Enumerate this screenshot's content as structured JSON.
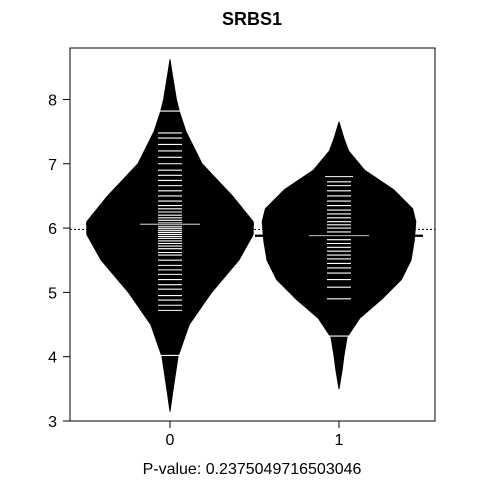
{
  "chart_data": {
    "type": "beanplot",
    "title": "SRBS1",
    "xlabel": "P-value: 0.2375049716503046",
    "ylabel": "",
    "categories": [
      "0",
      "1"
    ],
    "ylim": [
      3,
      8.8
    ],
    "yticks": [
      3,
      4,
      5,
      6,
      7,
      8
    ],
    "overall_mean": 5.98,
    "grid": false,
    "legend": "none",
    "colors": {
      "bean": "#000000",
      "strip": "#ffffff",
      "frame": "#000000"
    },
    "series": [
      {
        "name": "0",
        "mean": 6.06,
        "density_profile": [
          [
            3.15,
            0.0
          ],
          [
            3.5,
            0.02
          ],
          [
            4.0,
            0.05
          ],
          [
            4.5,
            0.12
          ],
          [
            5.0,
            0.26
          ],
          [
            5.5,
            0.43
          ],
          [
            5.9,
            0.52
          ],
          [
            6.1,
            0.52
          ],
          [
            6.5,
            0.39
          ],
          [
            7.0,
            0.2
          ],
          [
            7.5,
            0.1
          ],
          [
            7.8,
            0.06
          ],
          [
            8.0,
            0.04
          ],
          [
            8.3,
            0.02
          ],
          [
            8.62,
            0.0
          ]
        ],
        "observations": [
          4.02,
          4.72,
          4.8,
          4.88,
          4.95,
          5.05,
          5.12,
          5.2,
          5.28,
          5.35,
          5.42,
          5.5,
          5.58,
          5.62,
          5.68,
          5.72,
          5.76,
          5.8,
          5.84,
          5.87,
          5.9,
          5.93,
          5.96,
          5.99,
          6.02,
          6.05,
          6.08,
          6.12,
          6.16,
          6.2,
          6.25,
          6.3,
          6.35,
          6.42,
          6.5,
          6.58,
          6.66,
          6.74,
          6.82,
          6.9,
          7.0,
          7.1,
          7.2,
          7.3,
          7.4,
          7.48,
          7.82
        ]
      },
      {
        "name": "1",
        "mean": 5.88,
        "density_profile": [
          [
            3.5,
            0.0
          ],
          [
            3.8,
            0.02
          ],
          [
            4.0,
            0.03
          ],
          [
            4.3,
            0.05
          ],
          [
            4.6,
            0.13
          ],
          [
            4.9,
            0.27
          ],
          [
            5.2,
            0.39
          ],
          [
            5.5,
            0.45
          ],
          [
            5.8,
            0.47
          ],
          [
            6.1,
            0.48
          ],
          [
            6.3,
            0.46
          ],
          [
            6.6,
            0.34
          ],
          [
            6.9,
            0.16
          ],
          [
            7.2,
            0.06
          ],
          [
            7.4,
            0.03
          ],
          [
            7.65,
            0.0
          ]
        ],
        "observations": [
          4.32,
          4.9,
          5.08,
          5.2,
          5.3,
          5.38,
          5.45,
          5.52,
          5.58,
          5.64,
          5.7,
          5.76,
          5.82,
          5.88,
          5.94,
          6.0,
          6.05,
          6.1,
          6.16,
          6.22,
          6.28,
          6.35,
          6.42,
          6.5,
          6.58,
          6.66,
          6.72,
          6.8
        ]
      }
    ]
  }
}
